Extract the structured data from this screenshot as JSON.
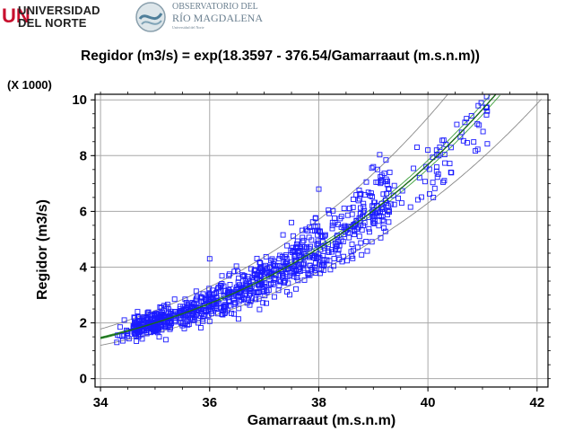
{
  "header": {
    "university_mark": "UN",
    "university_line1": "UNIVERSIDAD",
    "university_line2": "DEL NORTE",
    "observatory_line1": "OBSERVATORIO DEL",
    "observatory_line2": "RÍO MAGDALENA",
    "observatory_line3": "Universidad del Norte"
  },
  "chart_data": {
    "type": "scatter",
    "title": "Regidor  (m3/s) = exp(18.3597 - 376.54/Gamarraaut (m.s.n.m))",
    "xlabel": "Gamarraaut (m.s.n.m)",
    "ylabel": "Regidor  (m3/s)",
    "y_multiplier_label": "(X 1000)",
    "xlim": [
      33.9,
      42.2
    ],
    "ylim": [
      -0.3,
      10.2
    ],
    "x_ticks": [
      34,
      36,
      38,
      40,
      42
    ],
    "y_ticks": [
      0,
      2,
      4,
      6,
      8,
      10
    ],
    "grid": true,
    "model": {
      "a": 18.3597,
      "b": 376.54,
      "form": "y = exp(a - b/x)"
    },
    "point_cloud": {
      "x_range": [
        34.3,
        41.2
      ],
      "n_points": 900,
      "extremes": [
        [
          34.3,
          1.3
        ],
        [
          34.5,
          1.7
        ],
        [
          39.8,
          8.3
        ],
        [
          40.0,
          8.2
        ],
        [
          40.2,
          8.0
        ],
        [
          40.3,
          7.1
        ],
        [
          40.1,
          6.5
        ],
        [
          39.3,
          7.4
        ],
        [
          39.0,
          7.6
        ],
        [
          37.5,
          5.6
        ],
        [
          38.0,
          6.8
        ],
        [
          36.0,
          4.3
        ]
      ]
    },
    "series_colors": {
      "points": "#1a1aff",
      "fit": "#1a6a1a",
      "limits": "#8a8a8a"
    }
  }
}
